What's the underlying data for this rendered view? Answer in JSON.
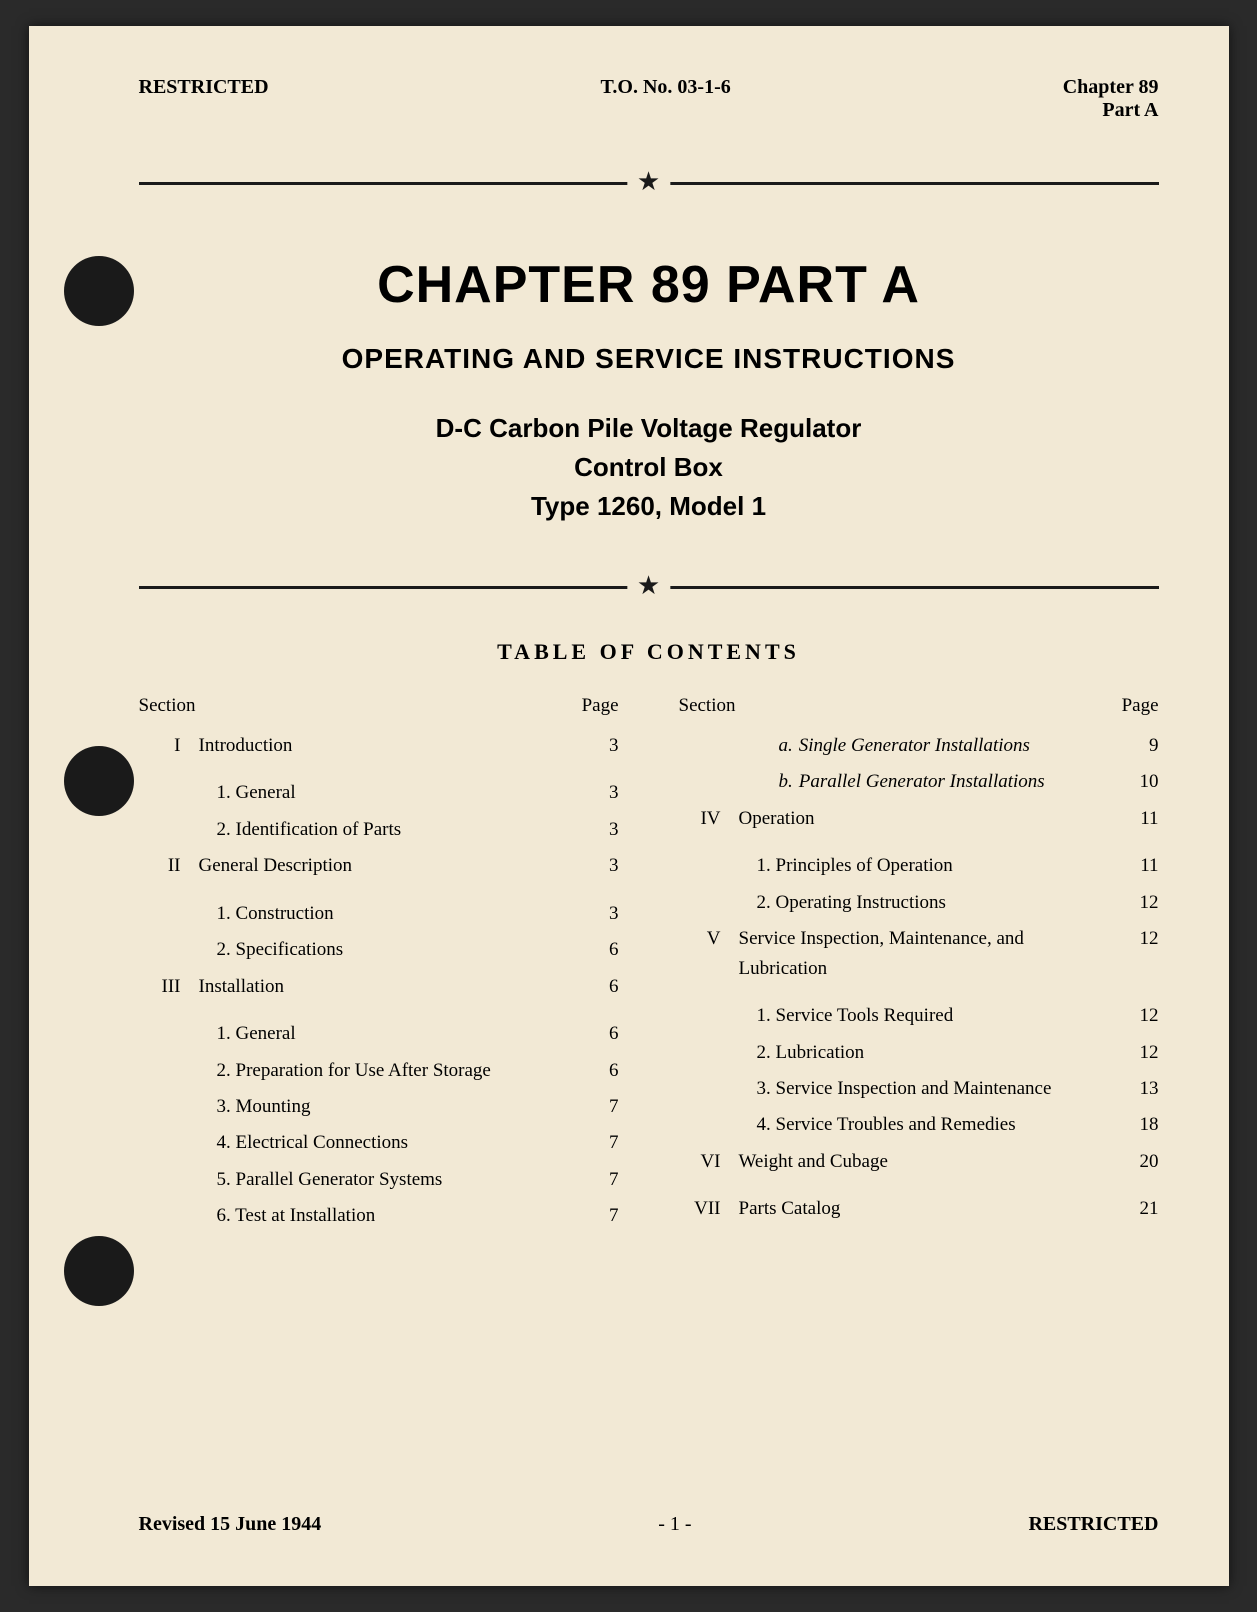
{
  "header": {
    "left": "RESTRICTED",
    "center": "T.O. No. 03-1-6",
    "right_line1": "Chapter 89",
    "right_line2": "Part A"
  },
  "title": {
    "chapter": "CHAPTER 89   PART A",
    "sub1": "OPERATING AND SERVICE INSTRUCTIONS",
    "sub2_line1": "D-C Carbon Pile Voltage Regulator",
    "sub2_line2": "Control Box",
    "sub2_line3": "Type 1260, Model 1"
  },
  "toc_heading": "TABLE OF CONTENTS",
  "col_headers": {
    "section": "Section",
    "page": "Page"
  },
  "left_col": [
    {
      "num": "I",
      "label": "Introduction",
      "page": "3"
    },
    {
      "sub": "1. General",
      "page": "3"
    },
    {
      "sub": "2. Identification of Parts",
      "page": "3"
    },
    {
      "num": "II",
      "label": "General Description",
      "page": "3"
    },
    {
      "sub": "1. Construction",
      "page": "3"
    },
    {
      "sub": "2. Specifications",
      "page": "6"
    },
    {
      "num": "III",
      "label": "Installation",
      "page": "6"
    },
    {
      "sub": "1. General",
      "page": "6"
    },
    {
      "sub": "2. Preparation for Use After Storage",
      "page": "6"
    },
    {
      "sub": "3. Mounting",
      "page": "7"
    },
    {
      "sub": "4. Electrical Connections",
      "page": "7"
    },
    {
      "sub": "5. Parallel Generator Systems",
      "page": "7"
    },
    {
      "sub": "6. Test at Installation",
      "page": "7"
    }
  ],
  "right_col": [
    {
      "subsub": "a.",
      "label": "Single Generator Installations",
      "page": "9"
    },
    {
      "subsub": "b.",
      "label": "Parallel Generator Installations",
      "page": "10"
    },
    {
      "num": "IV",
      "label": "Operation",
      "page": "11"
    },
    {
      "sub": "1. Principles of Operation",
      "page": "11"
    },
    {
      "sub": "2. Operating Instructions",
      "page": "12"
    },
    {
      "num": "V",
      "label": "Service Inspection, Maintenance, and Lubrication",
      "page": "12",
      "wrap": true
    },
    {
      "sub": "1. Service Tools Required",
      "page": "12"
    },
    {
      "sub": "2. Lubrication",
      "page": "12"
    },
    {
      "sub": "3. Service Inspection and Maintenance",
      "page": "13"
    },
    {
      "sub": "4. Service Troubles and Remedies",
      "page": "18"
    },
    {
      "num": "VI",
      "label": "Weight and Cubage",
      "page": "20"
    },
    {
      "num": "VII",
      "label": "Parts Catalog",
      "page": "21"
    }
  ],
  "footer": {
    "left": "Revised 15 June 1944",
    "center": "- 1 -",
    "right": "RESTRICTED"
  },
  "colors": {
    "paper": "#f2e9d5",
    "ink": "#1a1a1a",
    "background": "#2a2a2a"
  }
}
